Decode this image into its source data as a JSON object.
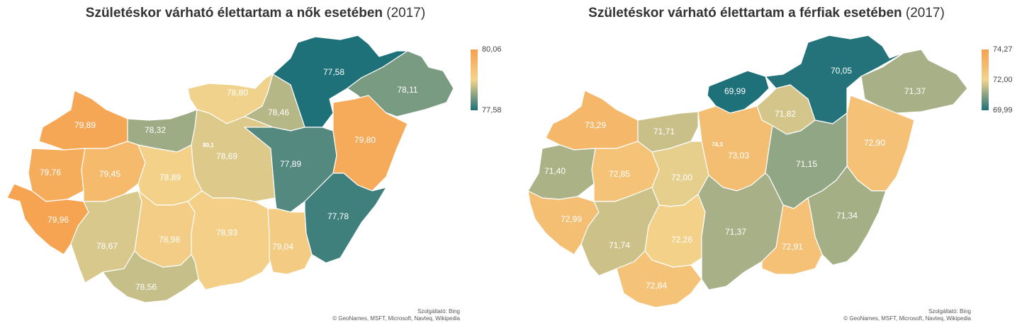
{
  "colors": {
    "high": "#f6a04d",
    "mid": "#f3d48d",
    "low": "#1e7079"
  },
  "left": {
    "title_main": "Születéskor várható élettartam a nők esetében",
    "title_year": "(2017)",
    "legend": {
      "max": "80,06",
      "min": "77,58",
      "min_color": "#1e7079",
      "max_color": "#f6a04d"
    },
    "regions": [
      {
        "label": "77,58",
        "value": 77.58
      },
      {
        "label": "78,11",
        "value": 78.11
      },
      {
        "label": "78,80",
        "value": 78.8
      },
      {
        "label": "78,46",
        "value": 78.46
      },
      {
        "label": "79,89",
        "value": 79.89
      },
      {
        "label": "78,32",
        "value": 78.32
      },
      {
        "label": "80,1",
        "value": 80.06
      },
      {
        "label": "78,69",
        "value": 78.69
      },
      {
        "label": "77,89",
        "value": 77.89
      },
      {
        "label": "79,80",
        "value": 79.8
      },
      {
        "label": "79,76",
        "value": 79.76
      },
      {
        "label": "79,45",
        "value": 79.45
      },
      {
        "label": "78,89",
        "value": 78.89
      },
      {
        "label": "77,78",
        "value": 77.78
      },
      {
        "label": "79,96",
        "value": 79.96
      },
      {
        "label": "78,67",
        "value": 78.67
      },
      {
        "label": "78,98",
        "value": 78.98
      },
      {
        "label": "78,93",
        "value": 78.93
      },
      {
        "label": "79,04",
        "value": 79.04
      },
      {
        "label": "78,56",
        "value": 78.56
      }
    ],
    "credit_1": "Szolgáltató: Bing",
    "credit_2": "© GeoNames, MSFT, Microsoft, Navteq, Wikipedia"
  },
  "right": {
    "title_main": "Születéskor várható élettartam a férfiak esetében",
    "title_year": "(2017)",
    "legend": {
      "max": "74,27",
      "mid": "72,00",
      "min": "69,99",
      "min_color": "#1e7079",
      "max_color": "#f6a04d"
    },
    "regions": [
      {
        "label": "69,99",
        "value": 69.99
      },
      {
        "label": "70,05",
        "value": 70.05
      },
      {
        "label": "71,37",
        "value": 71.37
      },
      {
        "label": "73,29",
        "value": 73.29
      },
      {
        "label": "71,71",
        "value": 71.71
      },
      {
        "label": "71,82",
        "value": 71.82
      },
      {
        "label": "74,3",
        "value": 74.27
      },
      {
        "label": "73,03",
        "value": 73.03
      },
      {
        "label": "72,90",
        "value": 72.9
      },
      {
        "label": "71,40",
        "value": 71.4
      },
      {
        "label": "72,85",
        "value": 72.85
      },
      {
        "label": "72,00",
        "value": 72.0
      },
      {
        "label": "71,15",
        "value": 71.15
      },
      {
        "label": "72,99",
        "value": 72.99
      },
      {
        "label": "71,34",
        "value": 71.34
      },
      {
        "label": "71,74",
        "value": 71.74
      },
      {
        "label": "72,26",
        "value": 72.26
      },
      {
        "label": "71,37",
        "value": 71.37
      },
      {
        "label": "72,91",
        "value": 72.91
      },
      {
        "label": "72,84",
        "value": 72.84
      }
    ],
    "credit_1": "Szolgáltató: Bing",
    "credit_2": "© GeoNames, MSFT, Microsoft, Navteq, Wikipedia"
  }
}
